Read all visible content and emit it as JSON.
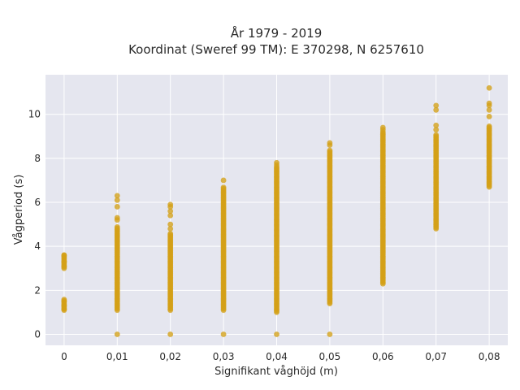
{
  "chart_data": {
    "type": "scatter",
    "title_line1": "År 1979 - 2019",
    "title_line2": "Koordinat (Sweref 99 TM): E 370298, N 6257610",
    "xlabel": "Signifikant våghöjd (m)",
    "ylabel": "Vågperiod (s)",
    "xlim": [
      -0.0035,
      0.0835
    ],
    "ylim": [
      -0.5,
      11.8
    ],
    "x_ticks": [
      0,
      0.01,
      0.02,
      0.03,
      0.04,
      0.05,
      0.06,
      0.07,
      0.08
    ],
    "x_tick_labels": [
      "0",
      "0,01",
      "0,02",
      "0,03",
      "0,04",
      "0,05",
      "0,06",
      "0,07",
      "0,08"
    ],
    "y_ticks": [
      0,
      2,
      4,
      6,
      8,
      10
    ],
    "y_tick_labels": [
      "0",
      "2",
      "4",
      "6",
      "8",
      "10"
    ],
    "grid": true,
    "legend": "none",
    "marker_color": "#d4a017",
    "plot_bg": "#e5e6ef",
    "columns": [
      {
        "x": 0,
        "ranges": [
          [
            1.1,
            1.6
          ],
          [
            3.0,
            3.6
          ]
        ],
        "isolated": [
          1.15,
          1.3,
          1.5,
          3.1,
          3.3,
          3.6
        ]
      },
      {
        "x": 0.01,
        "ranges": [
          [
            1.1,
            4.9
          ]
        ],
        "isolated": [
          0,
          5.2,
          5.3,
          5.8,
          6.1,
          6.3
        ]
      },
      {
        "x": 0.02,
        "ranges": [
          [
            1.1,
            4.6
          ]
        ],
        "isolated": [
          0,
          4.8,
          5.0,
          5.4,
          5.6,
          5.8,
          5.9
        ]
      },
      {
        "x": 0.03,
        "ranges": [
          [
            1.1,
            6.7
          ]
        ],
        "isolated": [
          0,
          7.0
        ]
      },
      {
        "x": 0.04,
        "ranges": [
          [
            1.0,
            7.6
          ]
        ],
        "isolated": [
          0,
          7.7,
          7.8
        ]
      },
      {
        "x": 0.05,
        "ranges": [
          [
            1.4,
            8.4
          ]
        ],
        "isolated": [
          0,
          8.6,
          8.7
        ]
      },
      {
        "x": 0.06,
        "ranges": [
          [
            2.3,
            9.2
          ]
        ],
        "isolated": [
          9.3,
          9.4
        ]
      },
      {
        "x": 0.07,
        "ranges": [
          [
            4.8,
            9.1
          ]
        ],
        "isolated": [
          9.3,
          9.5,
          10.2,
          10.4
        ]
      },
      {
        "x": 0.08,
        "ranges": [
          [
            6.7,
            9.5
          ]
        ],
        "isolated": [
          9.9,
          10.2,
          10.4,
          10.5,
          11.2
        ]
      }
    ]
  }
}
